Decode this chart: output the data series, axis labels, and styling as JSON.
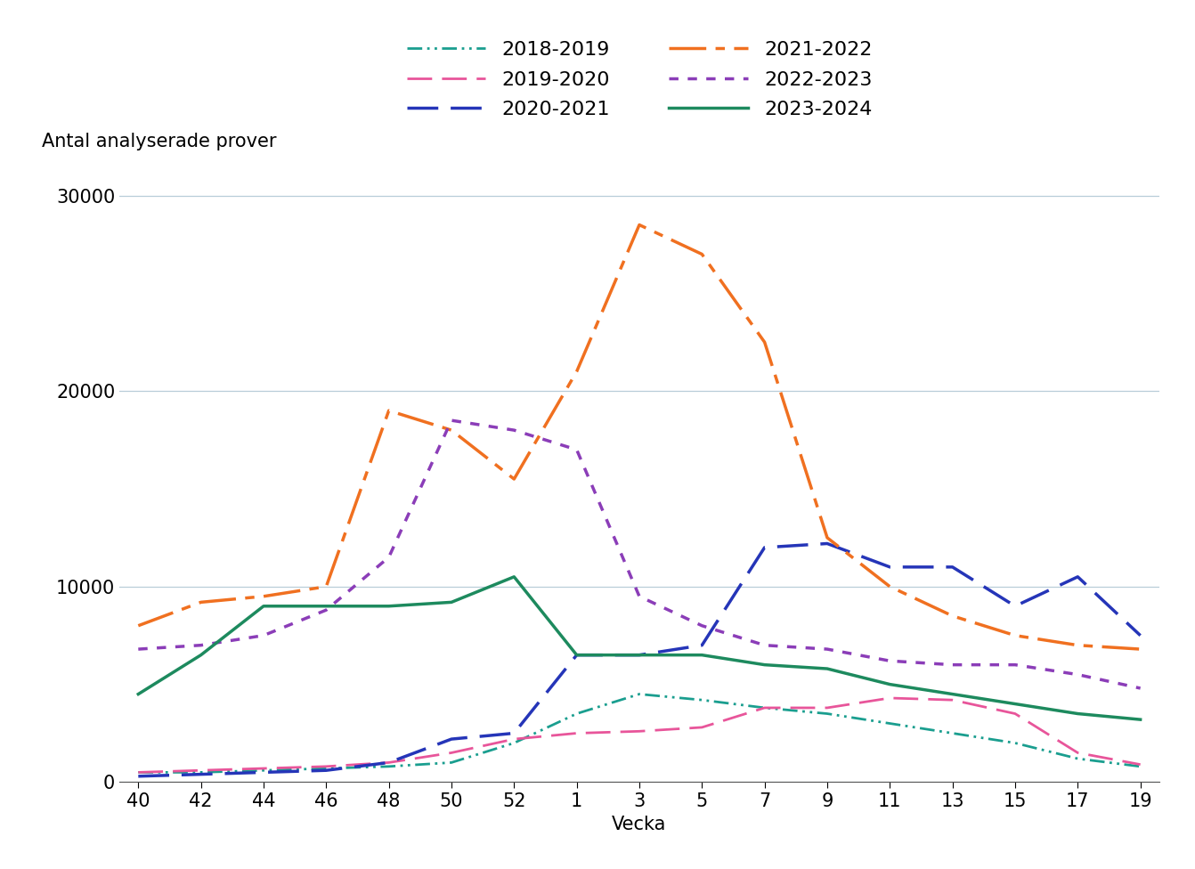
{
  "xlabel": "Vecka",
  "ylabel": "Antal analyserade prover",
  "x_ticks": [
    40,
    42,
    44,
    46,
    48,
    50,
    52,
    1,
    3,
    5,
    7,
    9,
    11,
    13,
    15,
    17,
    19
  ],
  "x_positions": [
    0,
    1,
    2,
    3,
    4,
    5,
    6,
    7,
    8,
    9,
    10,
    11,
    12,
    13,
    14,
    15,
    16
  ],
  "series": {
    "2018-2019": {
      "color": "#1a9e8f",
      "values": [
        500,
        500,
        600,
        700,
        800,
        1000,
        2000,
        3500,
        4500,
        4200,
        3800,
        3500,
        3000,
        2500,
        2000,
        1200,
        800
      ]
    },
    "2019-2020": {
      "color": "#e8559a",
      "values": [
        500,
        600,
        700,
        800,
        1000,
        1500,
        2200,
        2500,
        2600,
        2800,
        3800,
        3800,
        4300,
        4200,
        3500,
        1500,
        900
      ]
    },
    "2020-2021": {
      "color": "#2535b8",
      "values": [
        300,
        400,
        500,
        600,
        1000,
        2200,
        2500,
        6500,
        6500,
        7000,
        12000,
        12200,
        11000,
        11000,
        9000,
        10500,
        7500
      ]
    },
    "2021-2022": {
      "color": "#f07020",
      "values": [
        8000,
        9200,
        9500,
        10000,
        19000,
        18000,
        15500,
        21000,
        28500,
        27000,
        22500,
        12500,
        10000,
        8500,
        7500,
        7000,
        6800
      ]
    },
    "2022-2023": {
      "color": "#8b3db8",
      "values": [
        6800,
        7000,
        7500,
        8800,
        11500,
        18500,
        18000,
        17000,
        9500,
        8000,
        7000,
        6800,
        6200,
        6000,
        6000,
        5500,
        4800
      ]
    },
    "2023-2024": {
      "color": "#1d8a5e",
      "values": [
        4500,
        6500,
        9000,
        9000,
        9000,
        9200,
        10500,
        6500,
        6500,
        6500,
        6000,
        5800,
        5000,
        4500,
        4000,
        3500,
        3200
      ]
    }
  },
  "ylim": [
    0,
    32000
  ],
  "yticks": [
    0,
    10000,
    20000,
    30000
  ],
  "ytick_labels": [
    "0",
    "10000",
    "20000",
    "30000"
  ],
  "background_color": "#ffffff",
  "grid_color": "#b8cdd8",
  "legend_fontsize": 16,
  "axis_label_fontsize": 15,
  "tick_fontsize": 15
}
